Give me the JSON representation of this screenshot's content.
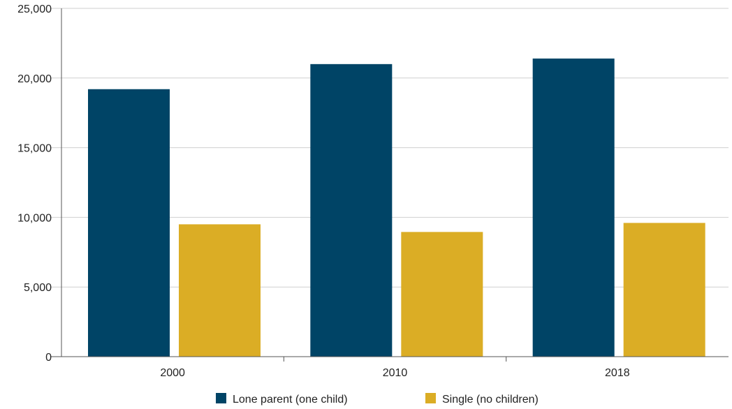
{
  "chart_data": {
    "type": "bar",
    "title": "",
    "xlabel": "",
    "ylabel": "",
    "categories": [
      "2000",
      "2010",
      "2018"
    ],
    "series": [
      {
        "name": "Lone parent (one child)",
        "color": "#004466",
        "values": [
          19200,
          21000,
          21400
        ]
      },
      {
        "name": "Single (no children)",
        "color": "#dbad25",
        "values": [
          9500,
          8950,
          9600
        ]
      }
    ],
    "ylim": [
      0,
      25000
    ],
    "yticks": [
      0,
      5000,
      10000,
      15000,
      20000,
      25000
    ],
    "ytick_labels": [
      "0",
      "5,000",
      "10,000",
      "15,000",
      "20,000",
      "25,000"
    ],
    "grid": true,
    "legend_position": "bottom-center"
  }
}
